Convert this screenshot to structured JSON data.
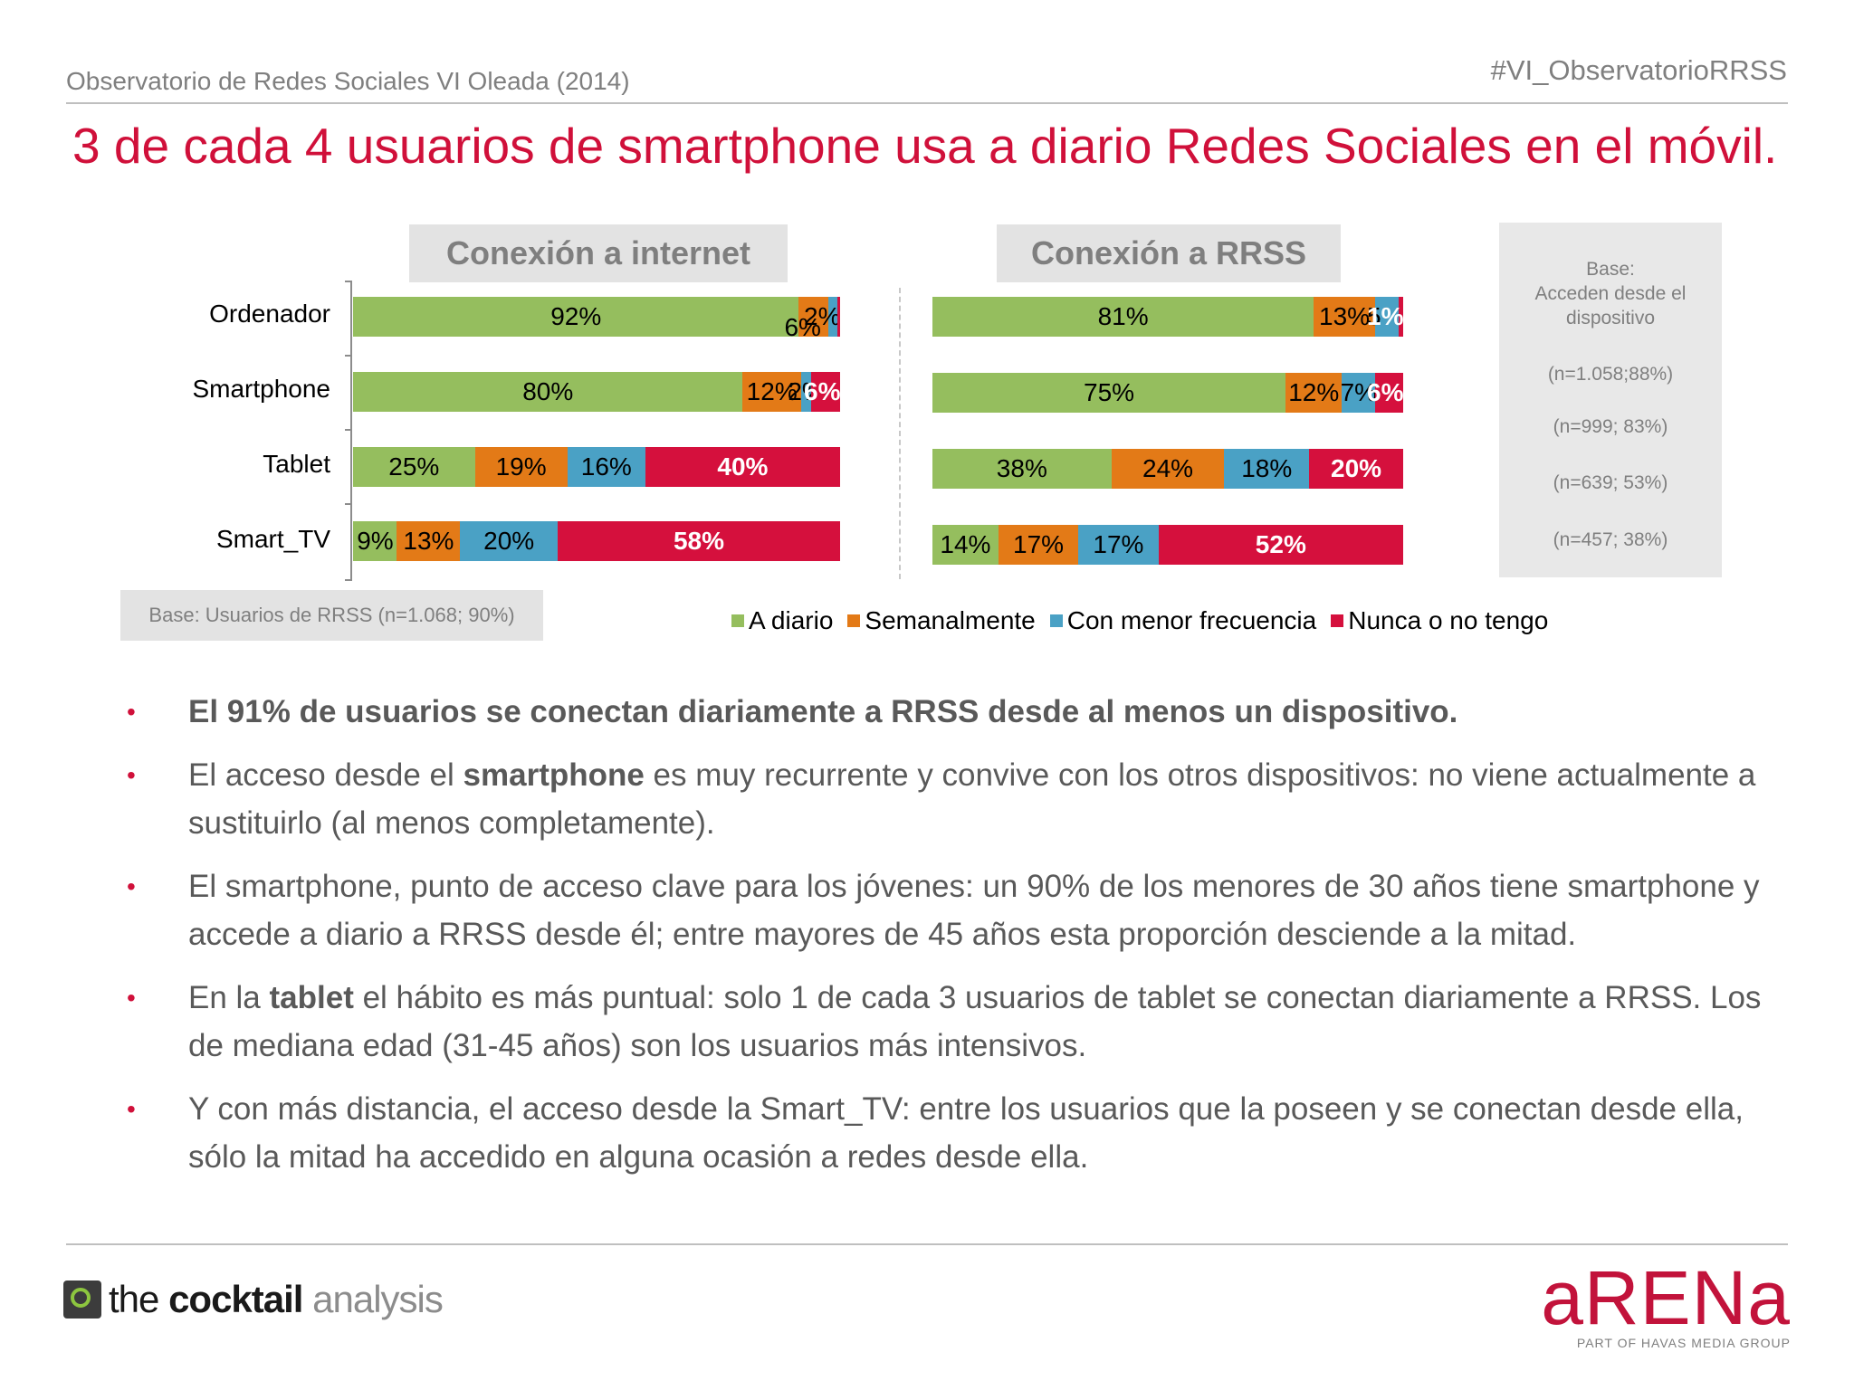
{
  "header": {
    "left": "Observatorio de Redes Sociales VI Oleada (2014)",
    "right": "#VI_ObservatorioRRSS"
  },
  "title": "3 de cada 4 usuarios de smartphone usa a diario Redes Sociales en el móvil.",
  "colors": {
    "a_diario": "#95be5e",
    "semanalmente": "#e37a17",
    "menor": "#4aa1c5",
    "nunca": "#d5103d",
    "accent": "#d0103a"
  },
  "chart_data": [
    {
      "type": "bar",
      "stacked": true,
      "orientation": "horizontal",
      "title": "Conexión a internet",
      "categories": [
        "Ordenador",
        "Smartphone",
        "Tablet",
        "Smart_TV"
      ],
      "series": [
        {
          "name": "A diario",
          "values": [
            92,
            80,
            25,
            9
          ],
          "labels": [
            "92%",
            "80%",
            "25%",
            "9%"
          ]
        },
        {
          "name": "Semanalmente",
          "values": [
            6,
            12,
            19,
            13
          ],
          "labels": [
            "6%",
            "12%",
            "19%",
            "13%"
          ]
        },
        {
          "name": "Con menor frecuencia",
          "values": [
            2,
            2,
            16,
            20
          ],
          "labels": [
            "2%",
            "2%",
            "16%",
            "20%"
          ]
        },
        {
          "name": "Nunca o no tengo",
          "values": [
            0.5,
            6,
            40,
            58
          ],
          "labels": [
            "",
            "6%",
            "40%",
            "58%"
          ]
        }
      ]
    },
    {
      "type": "bar",
      "stacked": true,
      "orientation": "horizontal",
      "title": "Conexión a RRSS",
      "categories": [
        "Ordenador",
        "Smartphone",
        "Tablet",
        "Smart_TV"
      ],
      "series": [
        {
          "name": "A diario",
          "values": [
            81,
            75,
            38,
            14
          ],
          "labels": [
            "81%",
            "75%",
            "38%",
            "14%"
          ]
        },
        {
          "name": "Semanalmente",
          "values": [
            13,
            12,
            24,
            17
          ],
          "labels": [
            "13%",
            "12%",
            "24%",
            "17%"
          ]
        },
        {
          "name": "Con menor frecuencia",
          "values": [
            5,
            7,
            18,
            17
          ],
          "labels": [
            "5%",
            "7%",
            "18%",
            "17%"
          ]
        },
        {
          "name": "Nunca o no tengo",
          "values": [
            1,
            6,
            20,
            52
          ],
          "labels": [
            "1%",
            "6%",
            "20%",
            "52%"
          ]
        }
      ]
    }
  ],
  "categories_display": [
    "Ordenador",
    "Smartphone",
    "Tablet",
    "Smart_TV"
  ],
  "legend": [
    "A diario",
    "Semanalmente",
    "Con menor frecuencia",
    "Nunca o no tengo"
  ],
  "base_box": {
    "heading": "Base:\nAcceden desde el dispositivo",
    "rows": [
      "(n=1.058;88%)",
      "(n=999; 83%)",
      "(n=639; 53%)",
      "(n=457; 38%)"
    ]
  },
  "base_note": "Base: Usuarios de RRSS (n=1.068; 90%)",
  "bullets": [
    {
      "parts": [
        {
          "b": true,
          "t": "El 91% de usuarios se conectan diariamente a RRSS desde al menos un dispositivo."
        }
      ]
    },
    {
      "parts": [
        {
          "b": false,
          "t": "El acceso desde el "
        },
        {
          "b": true,
          "t": "smartphone"
        },
        {
          "b": false,
          "t": " es muy recurrente y convive con los otros dispositivos: no viene actualmente a sustituirlo (al menos completamente)."
        }
      ]
    },
    {
      "parts": [
        {
          "b": false,
          "t": "El smartphone, punto de acceso clave para los jóvenes: un 90% de los menores de 30 años tiene smartphone y accede a diario a RRSS desde él; entre mayores de 45 años esta proporción desciende a la mitad."
        }
      ]
    },
    {
      "parts": [
        {
          "b": false,
          "t": "En la "
        },
        {
          "b": true,
          "t": "tablet"
        },
        {
          "b": false,
          "t": " el hábito es más puntual: solo 1 de cada 3 usuarios de tablet se conectan diariamente a RRSS. Los de mediana edad (31-45 años) son los usuarios más intensivos."
        }
      ]
    },
    {
      "parts": [
        {
          "b": false,
          "t": "Y con más distancia, el acceso desde la Smart_TV: entre los usuarios que la poseen y se conectan desde ella, sólo la mitad ha accedido en alguna ocasión a redes desde ella."
        }
      ]
    }
  ],
  "footer": {
    "logo_left_1": "the ",
    "logo_left_2": "cocktail",
    "logo_left_3": " analysis",
    "logo_right": "aRENa",
    "logo_right_sub": "PART OF HAVAS MEDIA GROUP"
  }
}
